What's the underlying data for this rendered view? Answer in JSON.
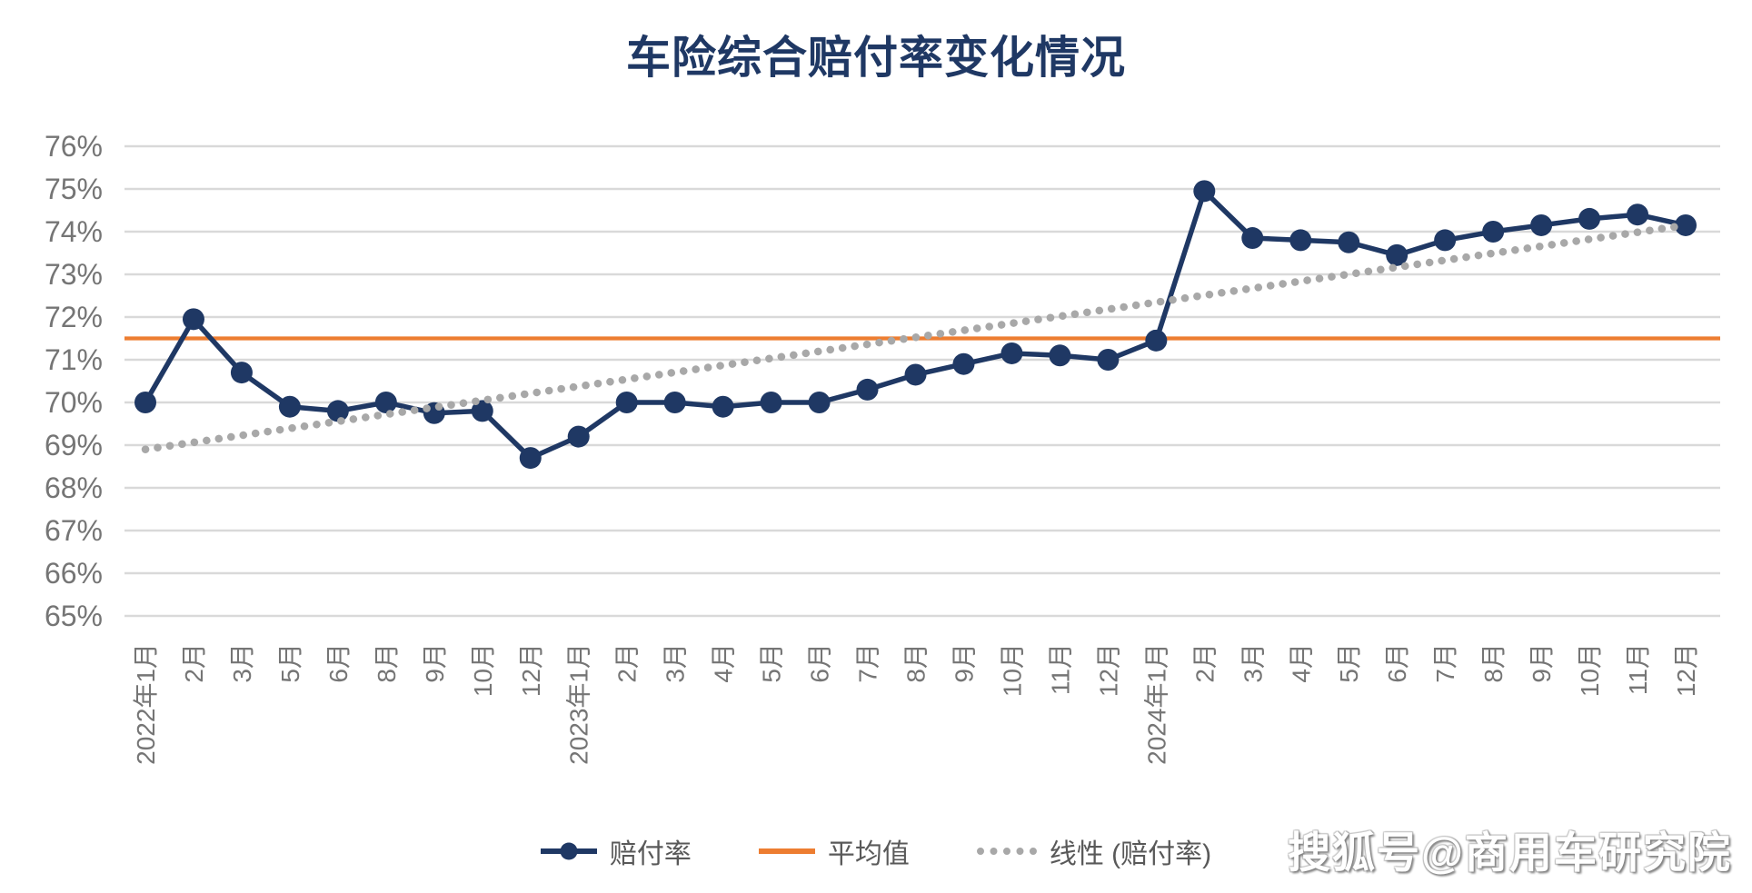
{
  "title": "车险综合赔付率变化情况",
  "watermark": "搜狐号@商用车研究院",
  "colors": {
    "series": "#1F3864",
    "average": "#ED7D31",
    "trend": "#A8A8A8",
    "gridline": "#D9D9D9",
    "axis_text": "#757575",
    "legend_text": "#595959",
    "title_text": "#1F3864"
  },
  "legend": [
    {
      "label": "赔付率"
    },
    {
      "label": "平均值"
    },
    {
      "label": "线性 (赔付率)"
    }
  ],
  "chart_data": {
    "type": "line",
    "title": "车险综合赔付率变化情况",
    "xlabel": "",
    "ylabel": "",
    "ylim": [
      65,
      76
    ],
    "ytick_step": 1,
    "ytick_labels": [
      "76%",
      "75%",
      "74%",
      "73%",
      "72%",
      "71%",
      "70%",
      "69%",
      "68%",
      "67%",
      "66%",
      "65%"
    ],
    "grid": true,
    "legend_position": "bottom",
    "categories": [
      "2022年1月",
      "2月",
      "3月",
      "5月",
      "6月",
      "8月",
      "9月",
      "10月",
      "12月",
      "2023年1月",
      "2月",
      "3月",
      "4月",
      "5月",
      "6月",
      "7月",
      "8月",
      "9月",
      "10月",
      "11月",
      "12月",
      "2024年1月",
      "2月",
      "3月",
      "4月",
      "5月",
      "6月",
      "7月",
      "8月",
      "9月",
      "10月",
      "11月",
      "12月"
    ],
    "series": [
      {
        "name": "赔付率",
        "type": "line",
        "color": "#1F3864",
        "values": [
          70.0,
          71.95,
          70.7,
          69.9,
          69.8,
          70.0,
          69.75,
          69.8,
          68.7,
          69.2,
          70.0,
          70.0,
          69.9,
          70.0,
          70.0,
          70.3,
          70.65,
          70.9,
          71.15,
          71.1,
          71.0,
          71.45,
          74.95,
          73.85,
          73.8,
          73.75,
          73.45,
          73.8,
          74.0,
          74.15,
          74.3,
          74.4,
          74.15
        ]
      },
      {
        "name": "平均值",
        "type": "constant",
        "color": "#ED7D31",
        "value": 71.5
      },
      {
        "name": "线性 (赔付率)",
        "type": "trend",
        "color": "#A8A8A8",
        "start": 68.9,
        "end": 74.15
      }
    ]
  }
}
